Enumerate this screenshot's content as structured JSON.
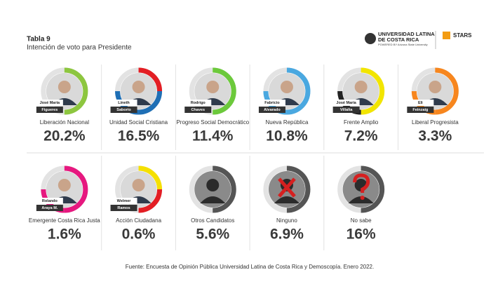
{
  "header": {
    "title": "Tabla 9",
    "subtitle": "Intención de voto para Presidente",
    "logo": {
      "line1": "UNIVERSIDAD LATINA",
      "line2": "DE COSTA RICA",
      "powered": "POWERED BY Arizona State University",
      "stars": "STARS"
    }
  },
  "candidates": [
    {
      "name": [
        "José María",
        "Figueres"
      ],
      "party": "Liberación Nacional",
      "result": "20.2%",
      "ring": [
        "#8dc63f",
        "#8dc63f"
      ]
    },
    {
      "name": [
        "Lineth",
        "Saborío"
      ],
      "party": "Unidad Social Cristiana",
      "result": "16.5%",
      "ring": [
        "#e31e24",
        "#1f6fb5",
        "#1f6fb5"
      ]
    },
    {
      "name": [
        "Rodrigo",
        "Chaves"
      ],
      "party": "Progreso Social Democrático",
      "result": "11.4%",
      "ring": [
        "#6cc93b",
        "#6cc93b"
      ]
    },
    {
      "name": [
        "Fabricio",
        "Alvarado"
      ],
      "party": "Nueva República",
      "result": "10.8%",
      "ring": [
        "#4aa8e0",
        "#4aa8e0",
        "#4aa8e0"
      ]
    },
    {
      "name": [
        "José María",
        "Villalta"
      ],
      "party": "Frente Amplio",
      "result": "7.2%",
      "ring": [
        "#f2e500",
        "#f2e500",
        "#222222"
      ]
    },
    {
      "name": [
        "Eli",
        "Feinzaig"
      ],
      "party": "Liberal Progresista",
      "result": "3.3%",
      "ring": [
        "#f7861e",
        "#f7861e",
        "#f7861e"
      ]
    },
    {
      "name": [
        "Rolando",
        "Araya M."
      ],
      "party": "Emergente Costa Rica Justa",
      "result": "1.6%",
      "ring": [
        "#e6187f",
        "#e6187f",
        "#e6187f"
      ]
    },
    {
      "name": [
        "Welmer",
        "Ramos"
      ],
      "party": "Acción Ciudadana",
      "result": "0.6%",
      "ring": [
        "#f5e000",
        "#e31e24"
      ]
    },
    {
      "party": "Otros Candidatos",
      "result": "5.6%",
      "ring": [
        "#555555",
        "#555555"
      ]
    },
    {
      "party": "Ninguno",
      "result": "6.9%",
      "ring": [
        "#555555",
        "#555555"
      ]
    },
    {
      "party": "No sabe",
      "result": "16%",
      "ring": [
        "#555555",
        "#555555"
      ]
    }
  ],
  "footer": "Fuente: Encuesta de Opinión Pública Universidad Latina de Costa Rica y Demoscopía. Enero 2022."
}
